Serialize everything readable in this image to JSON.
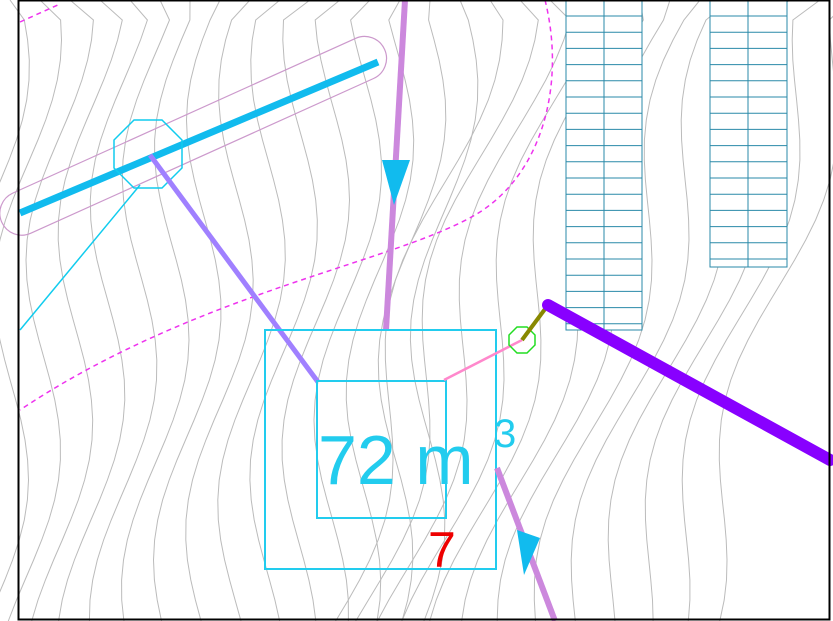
{
  "labels": {
    "volume": "72 m",
    "volume_exponent": "3",
    "node_number": "7"
  }
}
